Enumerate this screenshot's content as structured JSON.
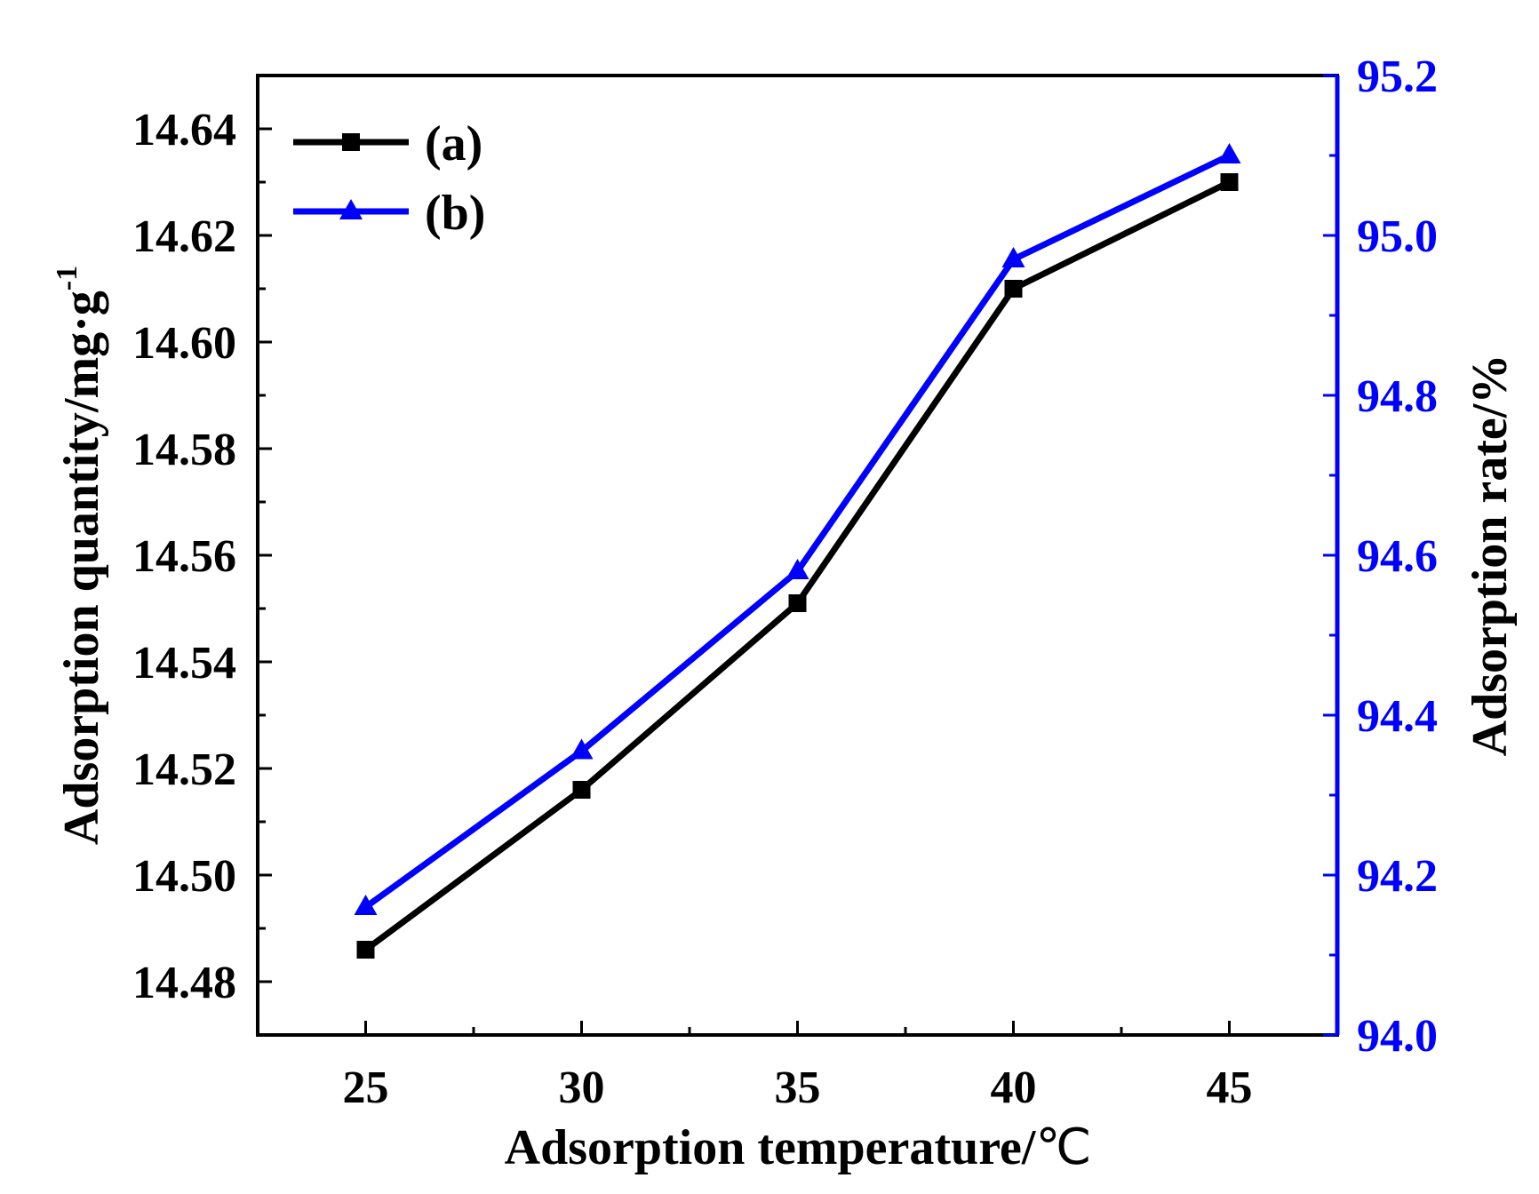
{
  "chart_data": {
    "type": "line",
    "x_label": "Adsorption temperature/",
    "x_label_unit": "℃",
    "y_left_label": "Adsorption quantity/mg·g",
    "y_left_label_sup": "-1",
    "y_right_label": "Adsorption rate/%",
    "x": [
      25,
      30,
      35,
      40,
      45
    ],
    "x_ticks": [
      "25",
      "30",
      "35",
      "40",
      "45"
    ],
    "xlim": [
      22.5,
      47.5
    ],
    "y_left_lim": [
      14.47,
      14.65
    ],
    "y_left_ticks": [
      "14.48",
      "14.50",
      "14.52",
      "14.54",
      "14.56",
      "14.58",
      "14.60",
      "14.62",
      "14.64"
    ],
    "y_right_lim": [
      94.0,
      95.2
    ],
    "y_right_ticks": [
      "94.0",
      "94.2",
      "94.4",
      "94.6",
      "94.8",
      "95.0",
      "95.2"
    ],
    "series": [
      {
        "name": "(a)",
        "axis": "left",
        "marker": "square",
        "color": "#000000",
        "values": [
          14.486,
          14.516,
          14.551,
          14.61,
          14.63
        ]
      },
      {
        "name": "(b)",
        "axis": "right",
        "marker": "triangle",
        "color": "#0000ff",
        "values": [
          94.16,
          94.355,
          94.58,
          94.97,
          95.1
        ]
      }
    ],
    "legend": [
      "(a)",
      "(b)"
    ],
    "legend_position": "top-left"
  }
}
